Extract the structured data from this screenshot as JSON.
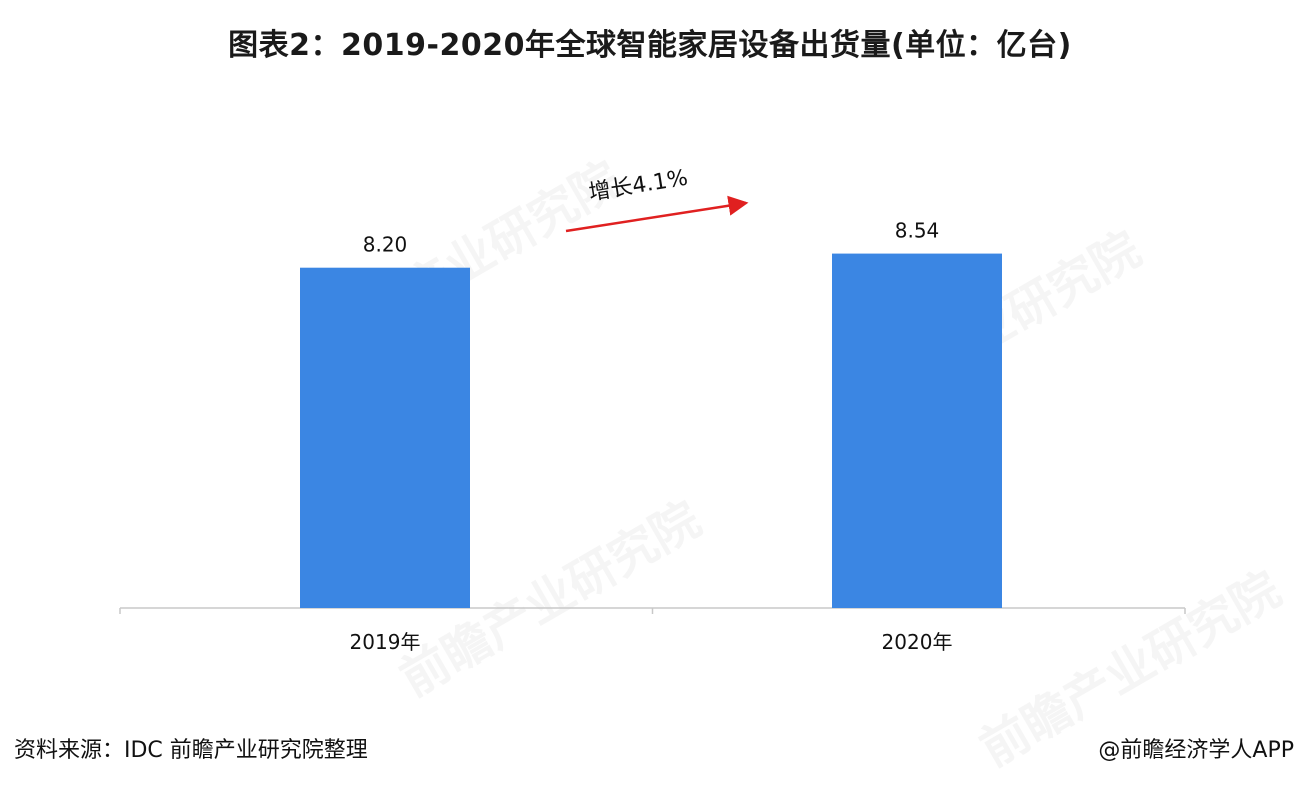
{
  "title": "图表2：2019-2020年全球智能家居设备出货量(单位：亿台)",
  "colors": {
    "bar": "#3b86e3",
    "arrow": "#e02020",
    "axis": "#c8c8c8"
  },
  "chart_data": {
    "type": "bar",
    "title": "图表2：2019-2020年全球智能家居设备出货量(单位：亿台)",
    "categories": [
      "2019年",
      "2020年"
    ],
    "values": [
      8.2,
      8.54
    ],
    "data_labels": [
      "8.20",
      "8.54"
    ],
    "xlabel": "",
    "ylabel": "",
    "ylim": [
      0,
      10
    ],
    "grid": false,
    "legend": "none",
    "annotation": {
      "text": "增长4.1%",
      "arrow": "from 2019年 toward 2020年"
    }
  },
  "watermark": "前瞻产业研究院",
  "footer": {
    "source": "资料来源：IDC 前瞻产业研究院整理",
    "credit": "@前瞻经济学人APP"
  }
}
